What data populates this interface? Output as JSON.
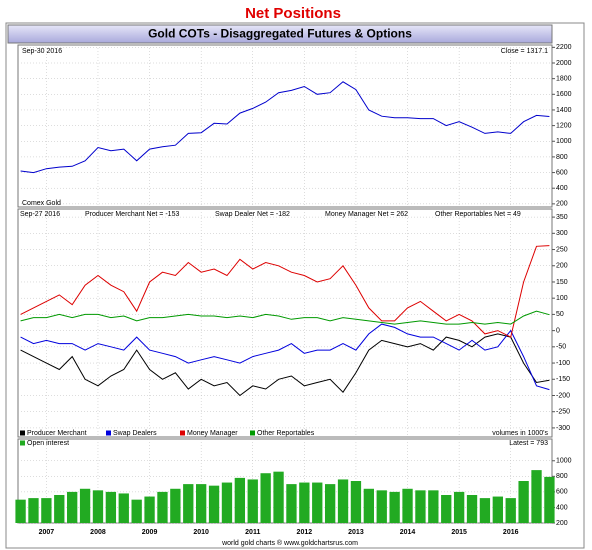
{
  "title": "Net Positions",
  "subtitle": "Gold COTs - Disaggregated Futures & Options",
  "footer": "world gold charts ® www.goldchartsrus.com",
  "chart_data": [
    {
      "type": "line",
      "annotations": [
        "Sep-30 2016",
        "Close = 1317.1"
      ],
      "x": [
        2006.5,
        2006.75,
        2007,
        2007.25,
        2007.5,
        2007.75,
        2008,
        2008.25,
        2008.5,
        2008.75,
        2009,
        2009.25,
        2009.5,
        2009.75,
        2010,
        2010.25,
        2010.5,
        2010.75,
        2011,
        2011.25,
        2011.5,
        2011.75,
        2012,
        2012.25,
        2012.5,
        2012.75,
        2013,
        2013.25,
        2013.5,
        2013.75,
        2014,
        2014.25,
        2014.5,
        2014.75,
        2015,
        2015.25,
        2015.5,
        2015.75,
        2016,
        2016.25,
        2016.5,
        2016.75
      ],
      "xlim": [
        2006.45,
        2016.8
      ],
      "xticks": [
        2007,
        2008,
        2009,
        2010,
        2011,
        2012,
        2013,
        2014,
        2015,
        2016
      ],
      "ylim": [
        160,
        2230
      ],
      "yticks": [
        200,
        400,
        600,
        800,
        1000,
        1200,
        1400,
        1600,
        1800,
        2000,
        2200
      ],
      "series": [
        {
          "name": "Comex Gold",
          "color": "#0000cc",
          "values": [
            620,
            600,
            650,
            670,
            680,
            750,
            920,
            880,
            900,
            750,
            900,
            930,
            950,
            1100,
            1110,
            1230,
            1220,
            1360,
            1420,
            1500,
            1620,
            1650,
            1700,
            1600,
            1620,
            1760,
            1660,
            1400,
            1320,
            1300,
            1300,
            1290,
            1290,
            1200,
            1250,
            1180,
            1100,
            1120,
            1100,
            1250,
            1330,
            1317
          ]
        }
      ]
    },
    {
      "type": "line",
      "annotations": [
        "Sep-27 2016",
        "Producer Merchant Net = -153",
        "Swap Dealer Net = -182",
        "Money Manager Net = 262",
        "Other Reportables Net = 49"
      ],
      "note": "volumes in 1000's",
      "x": [
        2006.5,
        2006.75,
        2007,
        2007.25,
        2007.5,
        2007.75,
        2008,
        2008.25,
        2008.5,
        2008.75,
        2009,
        2009.25,
        2009.5,
        2009.75,
        2010,
        2010.25,
        2010.5,
        2010.75,
        2011,
        2011.25,
        2011.5,
        2011.75,
        2012,
        2012.25,
        2012.5,
        2012.75,
        2013,
        2013.25,
        2013.5,
        2013.75,
        2014,
        2014.25,
        2014.5,
        2014.75,
        2015,
        2015.25,
        2015.5,
        2015.75,
        2016,
        2016.25,
        2016.5,
        2016.75
      ],
      "xlim": [
        2006.45,
        2016.8
      ],
      "xticks": [
        2007,
        2008,
        2009,
        2010,
        2011,
        2012,
        2013,
        2014,
        2015,
        2016
      ],
      "ylim": [
        -328,
        375
      ],
      "yticks": [
        -300,
        -250,
        -200,
        -150,
        -100,
        -50,
        0,
        50,
        100,
        150,
        200,
        250,
        300,
        350
      ],
      "series": [
        {
          "name": "Producer Merchant",
          "color": "#000000",
          "values": [
            -60,
            -80,
            -100,
            -120,
            -80,
            -150,
            -170,
            -140,
            -120,
            -60,
            -120,
            -150,
            -130,
            -180,
            -150,
            -170,
            -160,
            -200,
            -170,
            -180,
            -150,
            -140,
            -170,
            -160,
            -150,
            -190,
            -130,
            -60,
            -30,
            -40,
            -50,
            -40,
            -60,
            -20,
            -30,
            -50,
            -20,
            -10,
            -20,
            -100,
            -160,
            -153
          ]
        },
        {
          "name": "Swap Dealers",
          "color": "#0000dd",
          "values": [
            -20,
            -40,
            -30,
            -40,
            -40,
            -60,
            -40,
            -50,
            -60,
            -20,
            -60,
            -70,
            -80,
            -100,
            -90,
            -80,
            -90,
            -100,
            -80,
            -70,
            -60,
            -40,
            -70,
            -60,
            -60,
            -40,
            -60,
            -10,
            20,
            10,
            -10,
            -20,
            -20,
            -40,
            -60,
            -30,
            -60,
            -50,
            0,
            -80,
            -170,
            -182
          ]
        },
        {
          "name": "Money Manager",
          "color": "#dd0000",
          "values": [
            50,
            70,
            90,
            110,
            80,
            140,
            170,
            140,
            120,
            60,
            150,
            180,
            170,
            210,
            180,
            190,
            170,
            220,
            190,
            210,
            200,
            180,
            170,
            150,
            160,
            200,
            140,
            70,
            30,
            30,
            70,
            90,
            60,
            30,
            50,
            30,
            -10,
            0,
            -20,
            150,
            260,
            262
          ]
        },
        {
          "name": "Other Reportables",
          "color": "#009900",
          "values": [
            30,
            40,
            40,
            50,
            40,
            50,
            50,
            40,
            45,
            30,
            40,
            40,
            45,
            50,
            45,
            45,
            40,
            45,
            40,
            50,
            45,
            35,
            40,
            40,
            30,
            40,
            35,
            30,
            25,
            20,
            25,
            30,
            25,
            20,
            20,
            25,
            20,
            25,
            20,
            45,
            60,
            49
          ]
        }
      ]
    },
    {
      "type": "bar",
      "annotations": [
        "Latest = 793"
      ],
      "x": [
        2006.5,
        2006.75,
        2007,
        2007.25,
        2007.5,
        2007.75,
        2008,
        2008.25,
        2008.5,
        2008.75,
        2009,
        2009.25,
        2009.5,
        2009.75,
        2010,
        2010.25,
        2010.5,
        2010.75,
        2011,
        2011.25,
        2011.5,
        2011.75,
        2012,
        2012.25,
        2012.5,
        2012.75,
        2013,
        2013.25,
        2013.5,
        2013.75,
        2014,
        2014.25,
        2014.5,
        2014.75,
        2015,
        2015.25,
        2015.5,
        2015.75,
        2016,
        2016.25,
        2016.5,
        2016.75
      ],
      "xlim": [
        2006.45,
        2016.8
      ],
      "xticks": [
        2007,
        2008,
        2009,
        2010,
        2011,
        2012,
        2013,
        2014,
        2015,
        2016
      ],
      "ylim": [
        200,
        1280
      ],
      "yticks": [
        200,
        400,
        600,
        800,
        1000
      ],
      "series": [
        {
          "name": "Open interest",
          "color": "#22aa22",
          "values": [
            500,
            520,
            520,
            560,
            600,
            640,
            620,
            600,
            580,
            500,
            540,
            600,
            640,
            700,
            700,
            680,
            720,
            780,
            760,
            840,
            860,
            700,
            720,
            720,
            700,
            760,
            740,
            640,
            620,
            600,
            640,
            620,
            620,
            560,
            600,
            560,
            520,
            540,
            520,
            740,
            880,
            793
          ]
        }
      ]
    }
  ]
}
